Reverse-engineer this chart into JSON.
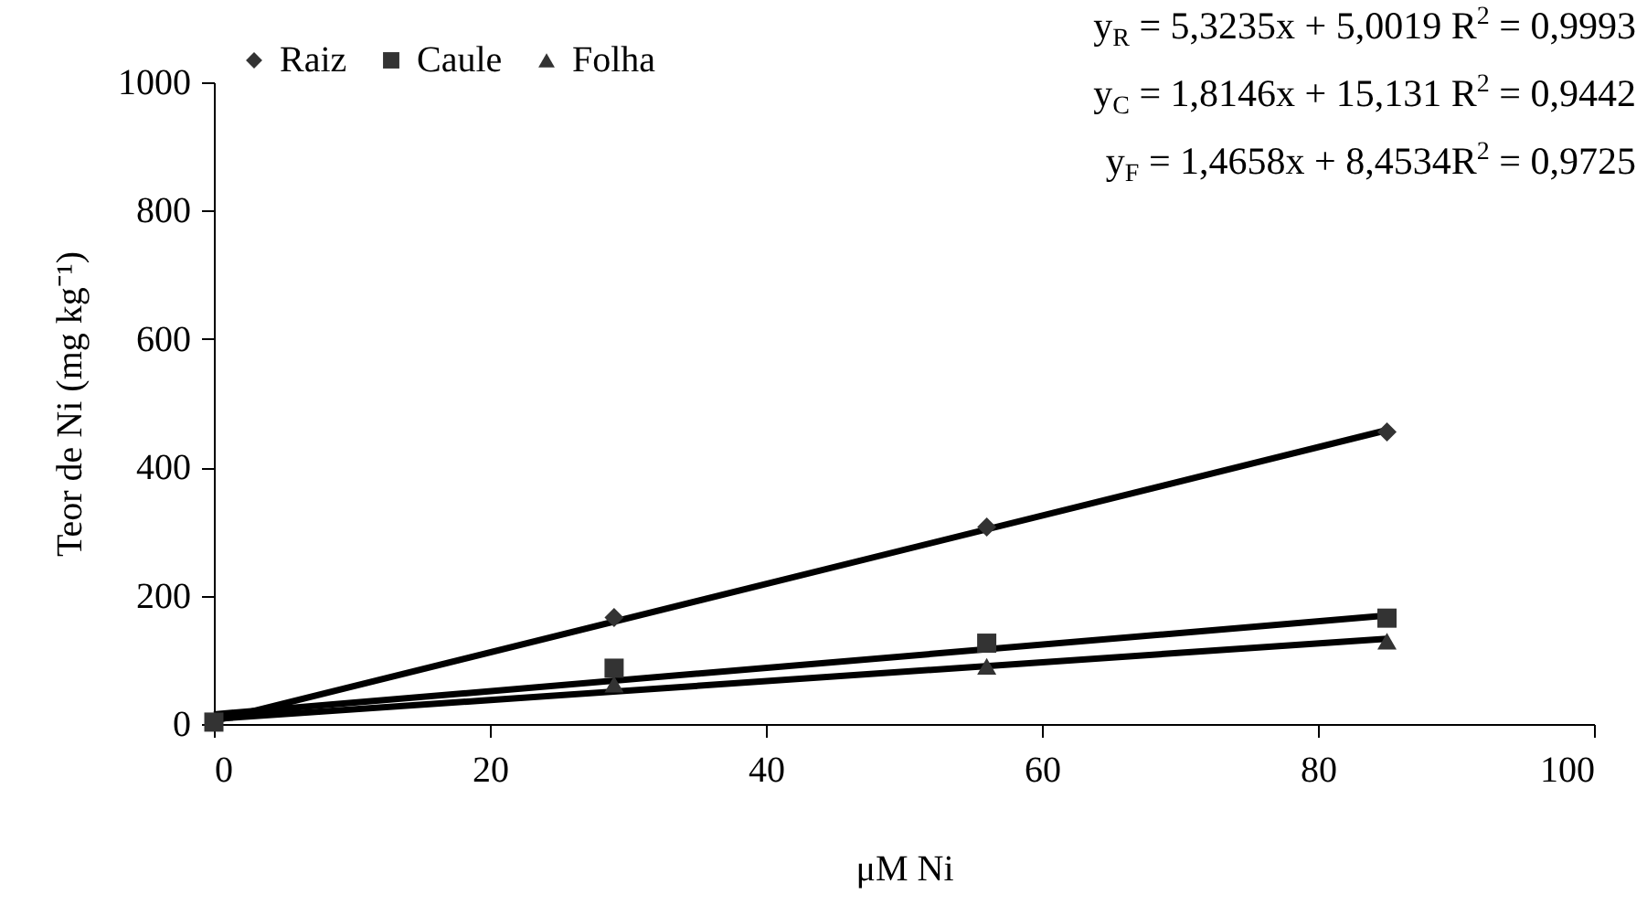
{
  "chart_data": {
    "type": "scatter",
    "xlabel": "μM Ni",
    "ylabel": "Teor de Ni (mg kg⁻¹)",
    "xlim": [
      0,
      100
    ],
    "xticks": [
      0,
      20,
      40,
      60,
      80,
      100
    ],
    "ylim": [
      0,
      1000
    ],
    "yticks": [
      0,
      200,
      400,
      600,
      800,
      1000
    ],
    "grid": false,
    "legend": "top left",
    "series": [
      {
        "name": "Raiz",
        "marker": "diamond",
        "color": "#333333",
        "x": [
          29,
          56,
          85
        ],
        "values": [
          166,
          307,
          455
        ]
      },
      {
        "name": "Caule",
        "marker": "square",
        "color": "#333333",
        "x": [
          0,
          29,
          56,
          85
        ],
        "values": [
          3,
          87,
          126,
          165
        ]
      },
      {
        "name": "Folha",
        "marker": "triangle",
        "color": "#333333",
        "x": [
          29,
          56,
          85
        ],
        "values": [
          62,
          90,
          129
        ]
      },
      {
        "type": "line",
        "color": "#000000",
        "x": [
          0,
          85
        ],
        "values": [
          5,
          458
        ]
      },
      {
        "type": "line",
        "color": "#000000",
        "x": [
          0,
          85
        ],
        "values": [
          15,
          169
        ]
      },
      {
        "type": "line",
        "color": "#000000",
        "x": [
          0,
          85
        ],
        "values": [
          8,
          133
        ]
      }
    ],
    "annotations": [
      "y$_{R}$ = 5,3235x + 5,0019 R$^{2}$ = 0,9993",
      "y$_{C}$ = 1,8146x + 15,131 R$^{2}$ = 0,9442",
      "y$_{F}$ = 1,4658x + 8,4534R$^{2}$ = 0,9725"
    ]
  }
}
